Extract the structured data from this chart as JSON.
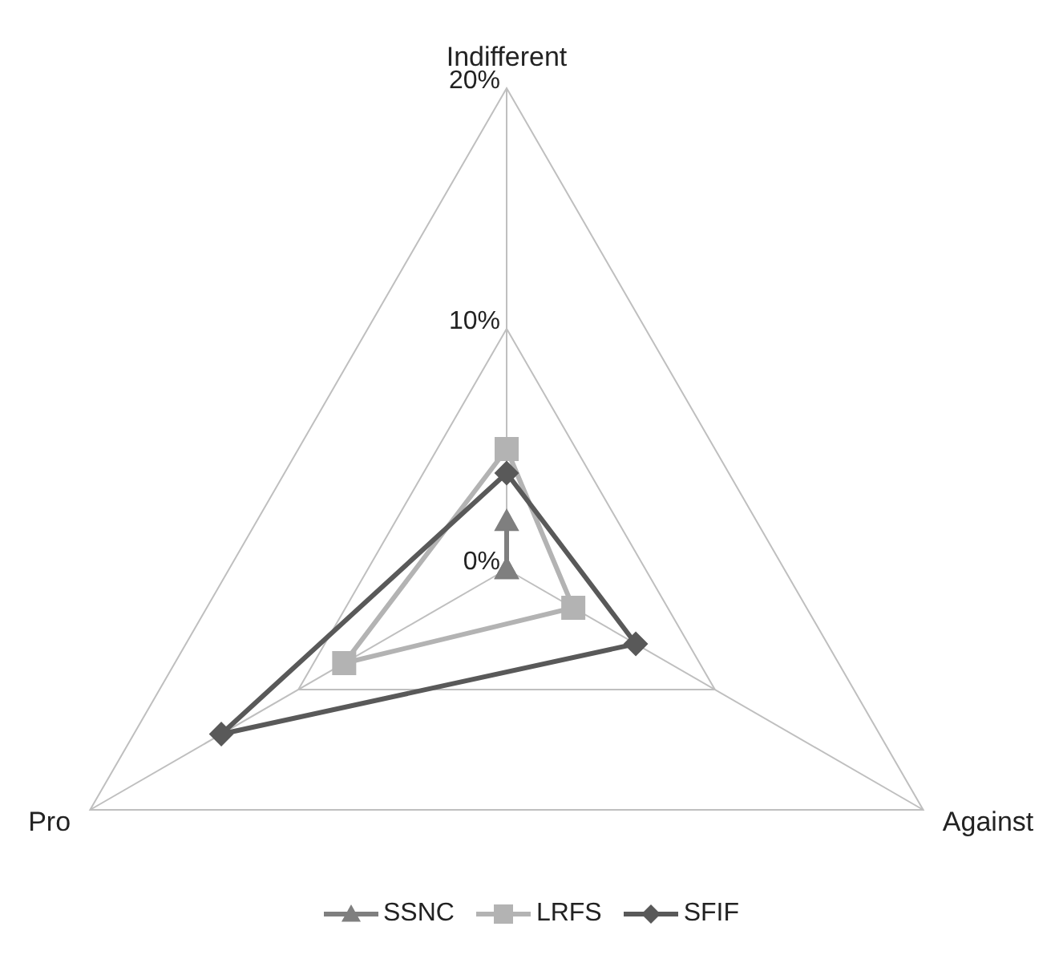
{
  "chart_data": {
    "type": "radar",
    "categories": [
      "Indifferent",
      "Against",
      "Pro"
    ],
    "series": [
      {
        "name": "SSNC",
        "color": "#7f7f7f",
        "marker": "triangle",
        "values": [
          2,
          0,
          0
        ]
      },
      {
        "name": "LRFS",
        "color": "#b3b3b3",
        "marker": "square",
        "values": [
          5,
          3.2,
          7.8
        ]
      },
      {
        "name": "SFIF",
        "color": "#595959",
        "marker": "diamond",
        "values": [
          4,
          6.2,
          13.7
        ]
      }
    ],
    "ylim": [
      0,
      20
    ],
    "yticks": [
      {
        "value": 0,
        "label": "0%"
      },
      {
        "value": 10,
        "label": "10%"
      },
      {
        "value": 20,
        "label": "20%"
      }
    ],
    "grid": true,
    "legend": "bottom"
  }
}
